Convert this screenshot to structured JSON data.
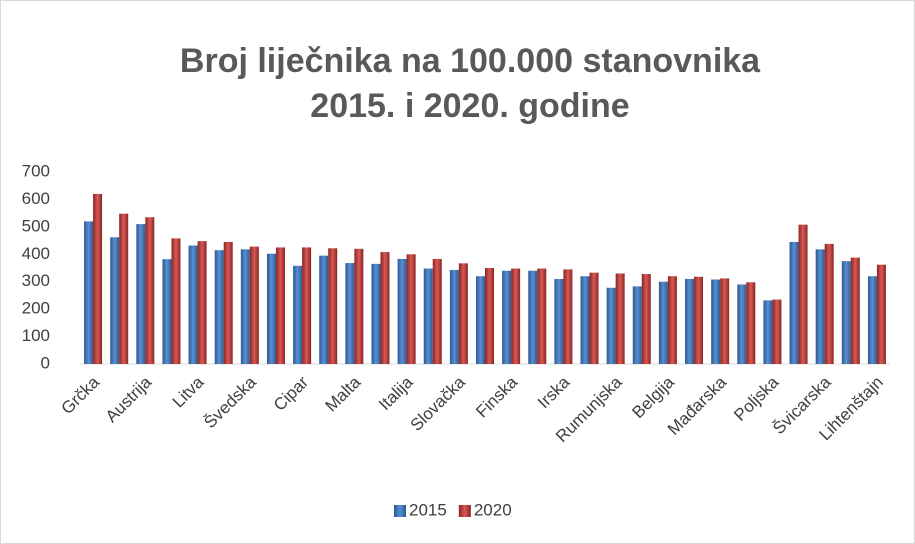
{
  "chart_data": {
    "type": "bar",
    "title": [
      "Broj liječnika na 100.000 stanovnika",
      "2015. i 2020. godine"
    ],
    "categories": [
      "Grčka",
      null,
      "Austrija",
      null,
      "Litva",
      null,
      "Švedska",
      null,
      "Cipar",
      null,
      "Malta",
      null,
      "Italija",
      null,
      "Slovačka",
      null,
      "Finska",
      null,
      "Irska",
      null,
      "Rumunjska",
      null,
      "Belgija",
      null,
      "Mađarska",
      null,
      "Poljska",
      null,
      "Švicarska",
      null,
      "Lihtenštajn"
    ],
    "series": [
      {
        "name": "2015",
        "color": "#4f81bd",
        "values": [
          520,
          462,
          510,
          382,
          432,
          415,
          418,
          402,
          358,
          395,
          368,
          365,
          383,
          348,
          343,
          320,
          340,
          340,
          310,
          320,
          278,
          283,
          300,
          310,
          308,
          290,
          232,
          445,
          418,
          375,
          320
        ]
      },
      {
        "name": "2020",
        "color": "#c0504d",
        "values": [
          620,
          548,
          535,
          458,
          448,
          445,
          428,
          425,
          425,
          422,
          420,
          408,
          400,
          383,
          367,
          350,
          348,
          348,
          345,
          333,
          330,
          328,
          320,
          318,
          312,
          298,
          235,
          508,
          438,
          388,
          362
        ]
      }
    ],
    "ylim": [
      0,
      700
    ],
    "yticks": [
      0,
      100,
      200,
      300,
      400,
      500,
      600,
      700
    ],
    "grid": false,
    "legend": "bottom"
  }
}
